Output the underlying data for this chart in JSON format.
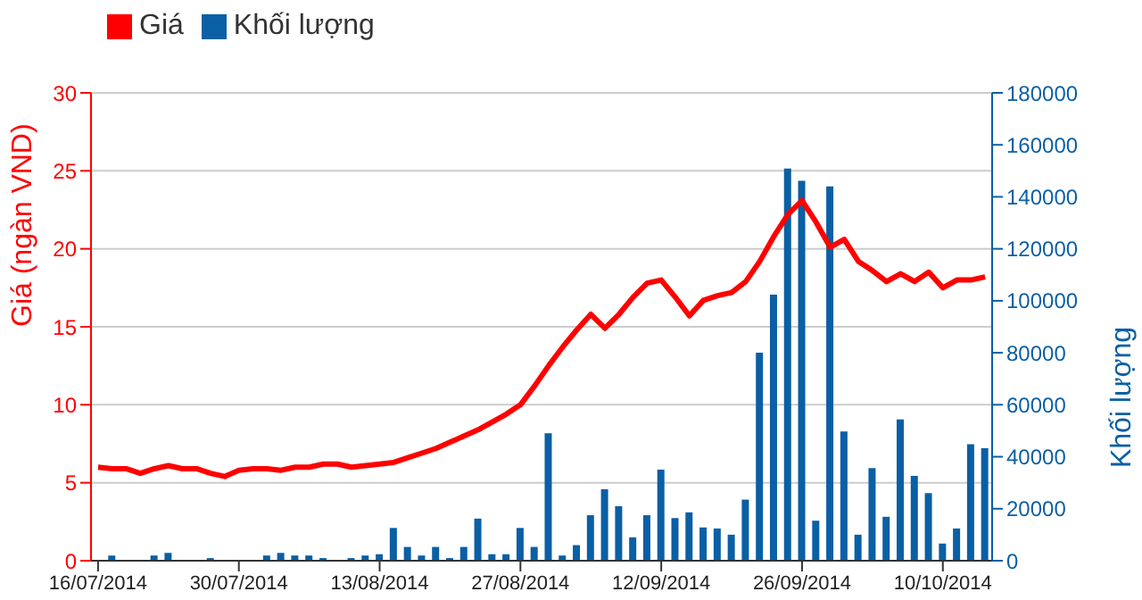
{
  "chart_data": {
    "type": "line",
    "categories": [
      "16/07/2014",
      null,
      null,
      null,
      null,
      null,
      null,
      null,
      null,
      null,
      "30/07/2014",
      null,
      null,
      null,
      null,
      null,
      null,
      null,
      null,
      null,
      "13/08/2014",
      null,
      null,
      null,
      null,
      null,
      null,
      null,
      null,
      null,
      "27/08/2014",
      null,
      null,
      null,
      null,
      null,
      null,
      null,
      null,
      null,
      "12/09/2014",
      null,
      null,
      null,
      null,
      null,
      null,
      null,
      null,
      null,
      "26/09/2014",
      null,
      null,
      null,
      null,
      null,
      null,
      null,
      null,
      null,
      "10/10/2014",
      null,
      null,
      null
    ],
    "series": [
      {
        "name": "Giá",
        "color": "#ff0000",
        "values": [
          6.0,
          5.9,
          5.9,
          5.6,
          5.9,
          6.1,
          5.9,
          5.9,
          5.6,
          5.4,
          5.8,
          5.9,
          5.9,
          5.8,
          6.0,
          6.0,
          6.2,
          6.2,
          6.0,
          6.1,
          6.2,
          6.3,
          6.6,
          6.9,
          7.2,
          7.6,
          8.0,
          8.4,
          8.9,
          9.4,
          10.0,
          11.2,
          12.5,
          13.7,
          14.8,
          15.8,
          14.9,
          15.8,
          16.9,
          17.8,
          18.0,
          16.9,
          15.7,
          16.7,
          17.0,
          17.2,
          17.9,
          19.2,
          20.8,
          22.2,
          23.1,
          21.7,
          20.1,
          20.6,
          19.2,
          18.6,
          17.9,
          18.4,
          17.9,
          18.5,
          17.5,
          18.0,
          18.0,
          18.2
        ]
      },
      {
        "name": "Khối lượng",
        "type": "bar",
        "axis": "y2",
        "color": "#0a5fa5",
        "values": [
          0,
          2000,
          0,
          0,
          2000,
          3000,
          0,
          0,
          1000,
          0,
          0,
          0,
          2000,
          3000,
          2000,
          2000,
          1000,
          0,
          1000,
          2000,
          2500,
          12600,
          5300,
          2000,
          5300,
          1000,
          5300,
          16200,
          2500,
          2500,
          12600,
          5300,
          49000,
          2000,
          6000,
          17500,
          27500,
          21000,
          9000,
          17500,
          35000,
          16400,
          18600,
          12800,
          12400,
          10000,
          23500,
          80000,
          102400,
          150900,
          146200,
          15400,
          144000,
          49700,
          10000,
          35600,
          16900,
          54400,
          32600,
          26000,
          6600,
          12400,
          44800,
          43300
        ]
      }
    ],
    "ylabel": "Giá (ngàn VND)",
    "y2label": "Khối lượng",
    "ylim": [
      0,
      30
    ],
    "yticks": [
      0,
      5,
      10,
      15,
      20,
      25,
      30
    ],
    "y2lim": [
      0,
      180000
    ],
    "y2ticks": [
      0,
      20000,
      40000,
      60000,
      80000,
      100000,
      120000,
      140000,
      160000,
      180000
    ],
    "grid": "y",
    "legend": "top left"
  }
}
